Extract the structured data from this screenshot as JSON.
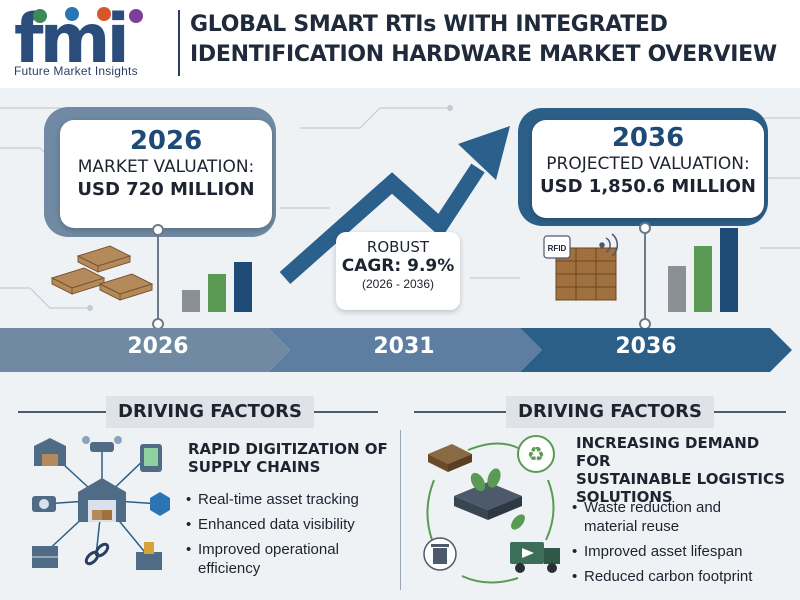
{
  "header": {
    "logo_text": "Future Market Insights",
    "logo_letters": "fmi",
    "title": "GLOBAL SMART RTIs WITH INTEGRATED IDENTIFICATION HARDWARE MARKET OVERVIEW"
  },
  "card_2026": {
    "year": "2026",
    "label": "MARKET VALUATION:",
    "value": "USD 720 MILLION"
  },
  "card_2036": {
    "year": "2036",
    "label": "PROJECTED VALUATION:",
    "value": "USD 1,850.6 MILLION"
  },
  "cagr": {
    "label": "ROBUST",
    "value": "CAGR: 9.9%",
    "range": "(2026 - 2036)"
  },
  "timeline": {
    "labels": [
      "2026",
      "2031",
      "2036"
    ]
  },
  "rfid_label": "RFID",
  "left_factors": {
    "title": "DRIVING FACTORS",
    "heading_1": "RAPID DIGITIZATION OF",
    "heading_2": "SUPPLY CHAINS",
    "items": [
      "Real-time asset tracking",
      "Enhanced data visibility",
      "Improved operational",
      "efficiency"
    ]
  },
  "right_factors": {
    "title": "DRIVING FACTORS",
    "heading_1": "INCREASING DEMAND FOR",
    "heading_2": "SUSTAINABLE LOGISTICS",
    "heading_3": "SOLUTIONS",
    "items": [
      "Waste reduction and",
      "material reuse",
      "Improved asset lifespan",
      "Reduced carbon footprint"
    ]
  },
  "colors": {
    "navy": "#1e4a78",
    "slate": "#6f8aa2",
    "green": "#5a9a54",
    "grey_bar": "#8a9096"
  }
}
